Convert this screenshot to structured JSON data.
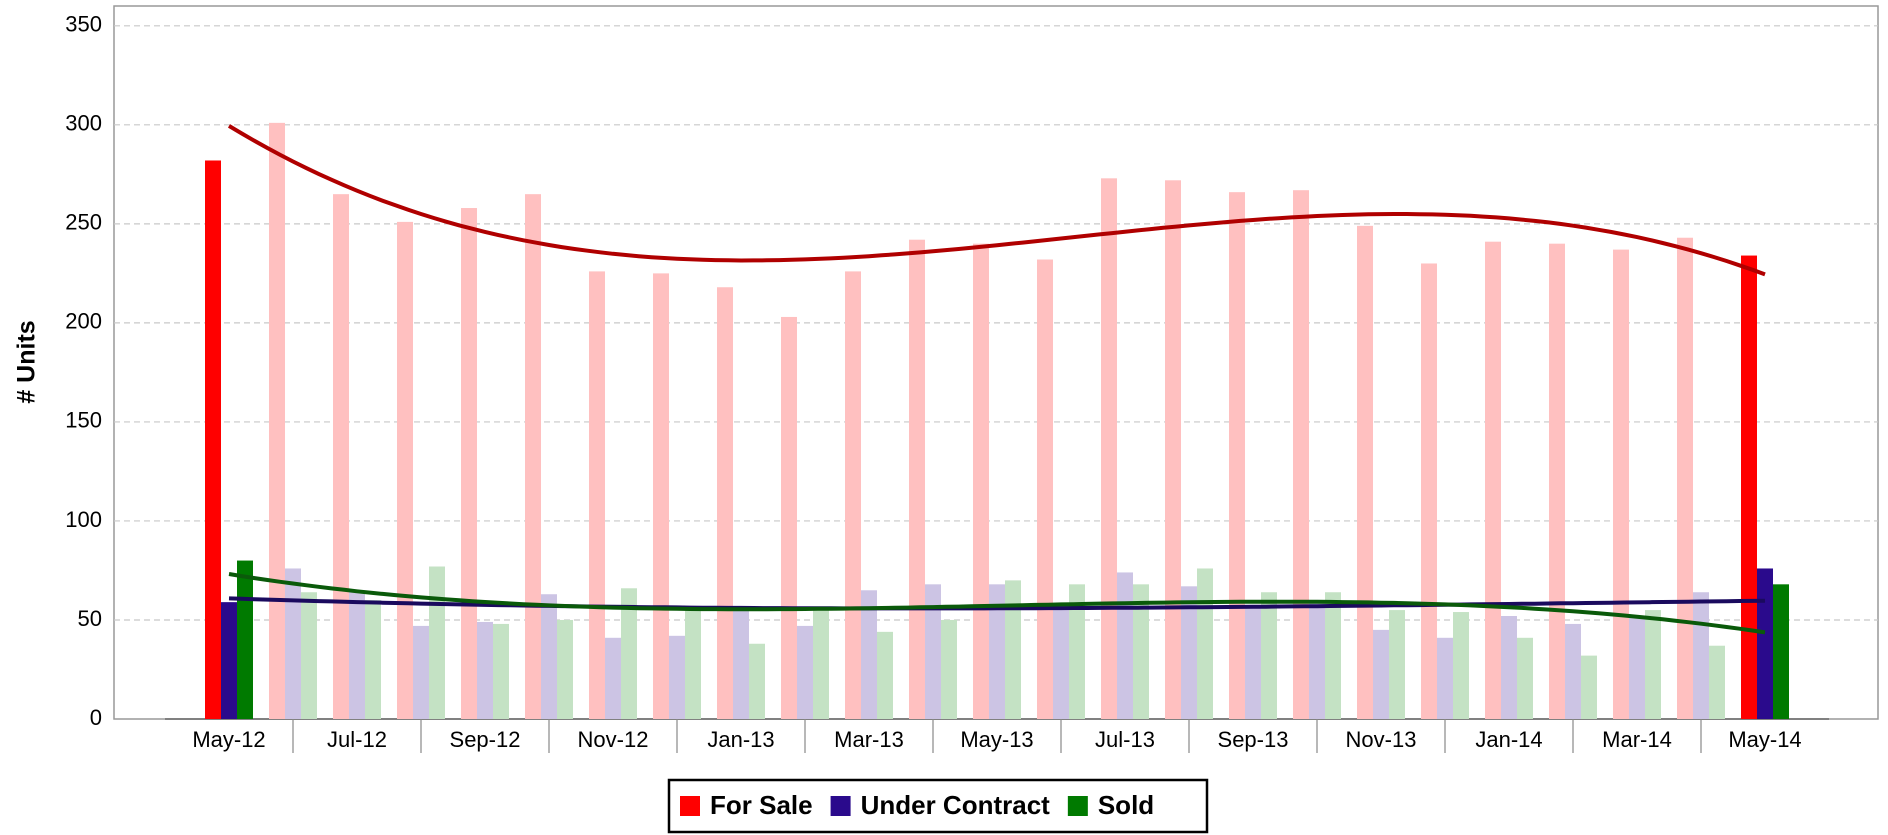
{
  "chart_data": {
    "type": "bar",
    "y_label": "# Units",
    "categories": [
      "May-12",
      null,
      "Jul-12",
      null,
      "Sep-12",
      null,
      "Nov-12",
      null,
      "Jan-13",
      null,
      "Mar-13",
      null,
      "May-13",
      null,
      "Jul-13",
      null,
      "Sep-13",
      null,
      "Nov-13",
      null,
      "Jan-14",
      null,
      "Mar-14",
      null,
      "May-14"
    ],
    "series": [
      {
        "name": "For Sale",
        "color": "#ff0000",
        "light_color": "#ffc0c0",
        "trend_color": "#b00000",
        "values": [
          282,
          301,
          265,
          251,
          258,
          265,
          226,
          225,
          218,
          203,
          226,
          242,
          240,
          232,
          273,
          272,
          266,
          267,
          249,
          230,
          241,
          240,
          237,
          243,
          234
        ]
      },
      {
        "name": "Under Contract",
        "color": "#2a0a8c",
        "light_color": "#ccc4e4",
        "trend_color": "#1a0a5e",
        "values": [
          59,
          76,
          65,
          47,
          49,
          63,
          41,
          42,
          55,
          47,
          65,
          68,
          68,
          57,
          74,
          67,
          57,
          60,
          45,
          41,
          52,
          48,
          51,
          64,
          76
        ]
      },
      {
        "name": "Sold",
        "color": "#007a00",
        "light_color": "#c4e2c4",
        "trend_color": "#0a5a0a",
        "values": [
          80,
          64,
          60,
          77,
          48,
          50,
          66,
          57,
          38,
          55,
          44,
          50,
          70,
          68,
          68,
          76,
          64,
          64,
          55,
          54,
          41,
          32,
          55,
          37,
          68
        ]
      }
    ],
    "ylim": [
      0,
      360
    ],
    "yticks": [
      0,
      50,
      100,
      150,
      200,
      250,
      300,
      350
    ],
    "grid": true,
    "legend": "bottom"
  }
}
